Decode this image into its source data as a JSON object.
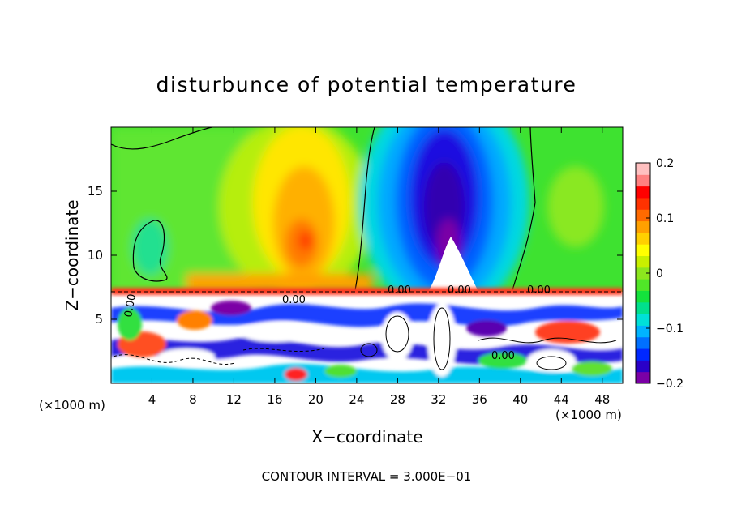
{
  "chart_data": {
    "type": "heatmap",
    "title": "disturbunce of potential temperature",
    "xlabel": "X−coordinate",
    "ylabel": "Z−coordinate",
    "x_unit_left": "(×1000 m)",
    "x_unit_right": "(×1000 m)",
    "xlim": [
      0,
      50
    ],
    "ylim": [
      0,
      20
    ],
    "x_ticks": [
      4,
      8,
      12,
      16,
      20,
      24,
      28,
      32,
      36,
      40,
      44,
      48
    ],
    "y_ticks": [
      5,
      10,
      15
    ],
    "colorbar": {
      "range": [
        -0.2,
        0.2
      ],
      "tick_values": [
        -0.2,
        -0.1,
        0,
        0.1,
        0.2
      ],
      "tick_labels": [
        "−0.2",
        "−0.1",
        "0",
        "0.1",
        "0.2"
      ],
      "colors": [
        "#7b00a6",
        "#2a00c8",
        "#0028ff",
        "#0070ff",
        "#00b4ff",
        "#00e0d8",
        "#00e08c",
        "#14e23c",
        "#50e628",
        "#8ce61e",
        "#c8f000",
        "#ffff00",
        "#ffd000",
        "#ffa000",
        "#ff6a00",
        "#ff3200",
        "#ff0000",
        "#ff8080",
        "#ffc0c0"
      ]
    },
    "contour_labels": [
      "0.00",
      "0.00",
      "0.00",
      "0.00",
      "0.00",
      "0.00"
    ],
    "contour_interval_text": "CONTOUR INTERVAL = 3.000E−01",
    "fields": {
      "upper_layer": {
        "z_range": [
          7,
          20
        ],
        "features": [
          {
            "kind": "warm anomaly",
            "x": 18,
            "z": 11.5,
            "value": 0.09
          },
          {
            "kind": "cold anomaly",
            "x": 32.5,
            "z": 13,
            "value": -0.2
          },
          {
            "kind": "weak cold",
            "x": 5,
            "z": 11,
            "value": -0.02
          },
          {
            "kind": "weak warm",
            "x": 45,
            "z": 14,
            "value": 0.03
          }
        ]
      },
      "lower_layer": {
        "z_range": [
          0,
          7
        ],
        "description_values": "turbulent mixed layer, values beyond ±0.2"
      }
    }
  }
}
